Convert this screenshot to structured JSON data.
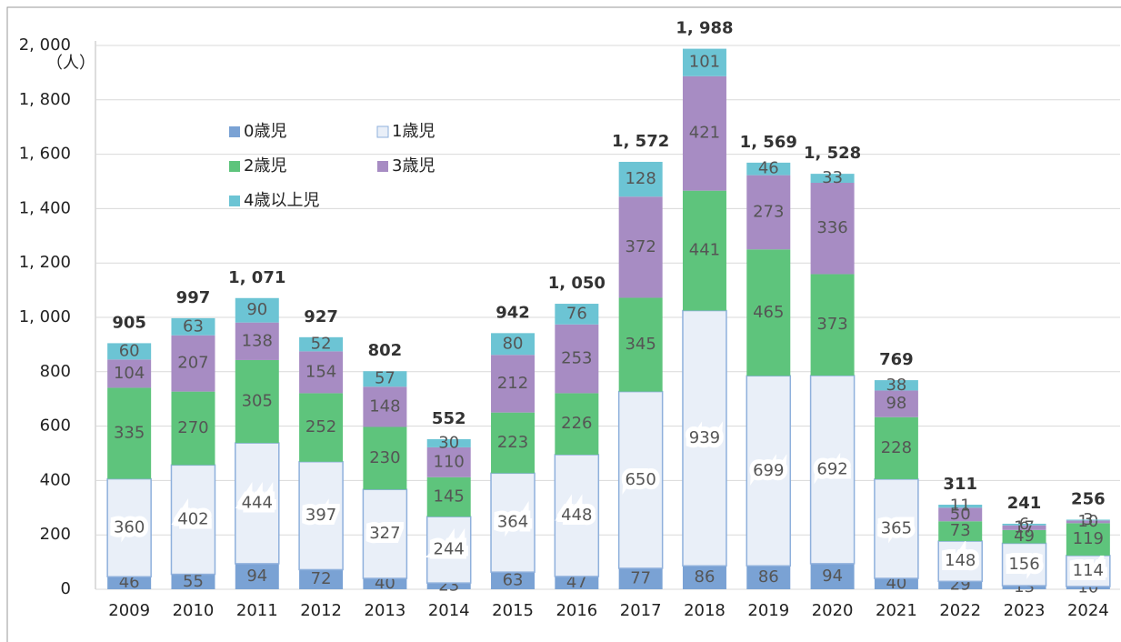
{
  "chart_data": {
    "type": "bar",
    "stacked": true,
    "y_unit": "（人）",
    "categories": [
      "2009",
      "2010",
      "2011",
      "2012",
      "2013",
      "2014",
      "2015",
      "2016",
      "2017",
      "2018",
      "2019",
      "2020",
      "2021",
      "2022",
      "2023",
      "2024"
    ],
    "series": [
      {
        "name": "0歳児",
        "color": "#7aa2d4",
        "values": [
          46,
          55,
          94,
          72,
          40,
          23,
          63,
          47,
          77,
          86,
          86,
          94,
          40,
          29,
          13,
          10
        ]
      },
      {
        "name": "1歳児",
        "color": "#e9eff8",
        "values": [
          360,
          402,
          444,
          397,
          327,
          244,
          364,
          448,
          650,
          939,
          699,
          692,
          365,
          148,
          156,
          114
        ]
      },
      {
        "name": "2歳児",
        "color": "#5ec47c",
        "values": [
          335,
          270,
          305,
          252,
          230,
          145,
          223,
          226,
          345,
          441,
          465,
          373,
          228,
          73,
          49,
          119
        ]
      },
      {
        "name": "3歳児",
        "color": "#a78cc3",
        "values": [
          104,
          207,
          138,
          154,
          148,
          110,
          212,
          253,
          372,
          421,
          273,
          336,
          98,
          50,
          17,
          10
        ]
      },
      {
        "name": "4歳以上児",
        "color": "#6cc4d4",
        "values": [
          60,
          63,
          90,
          52,
          57,
          30,
          80,
          76,
          128,
          101,
          46,
          33,
          38,
          11,
          6,
          3
        ]
      }
    ],
    "totals": {
      "values": [
        905,
        997,
        1071,
        927,
        802,
        552,
        942,
        1050,
        1572,
        1988,
        1569,
        1528,
        769,
        311,
        241,
        256
      ],
      "value_labels": [
        "905",
        "997",
        "1, 071",
        "927",
        "802",
        "552",
        "942",
        "1, 050",
        "1, 572",
        "1, 988",
        "1, 569",
        "1, 528",
        "769",
        "311",
        "241",
        "256"
      ]
    },
    "ylim": [
      0,
      2000
    ],
    "yticks": [
      0,
      200,
      400,
      600,
      800,
      {
        "value": 1000,
        "label": "1, 000"
      },
      {
        "value": 1200,
        "label": "1, 200"
      },
      {
        "value": 1400,
        "label": "1, 400"
      },
      {
        "value": 1600,
        "label": "1, 600"
      },
      {
        "value": 1800,
        "label": "1, 800"
      },
      {
        "value": 2000,
        "label": "2, 000"
      }
    ],
    "grid": true,
    "legend": "upper left"
  }
}
